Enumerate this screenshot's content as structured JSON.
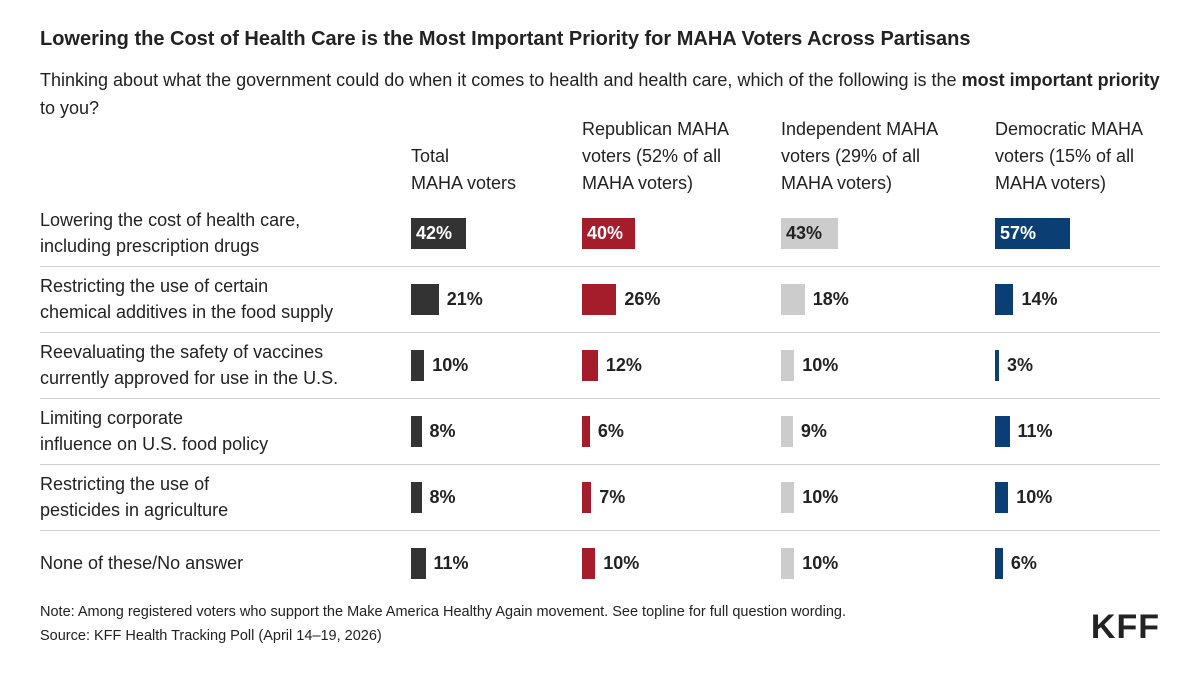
{
  "chart_data": {
    "type": "bar",
    "title": "Lowering the Cost of Health Care is the Most Important Priority for MAHA Voters Across Partisans",
    "subtitle": [
      "Thinking about what the government could do when it comes to health and health care, which of the following is the",
      "most important priority",
      "to you?"
    ],
    "categories": [
      "Lowering the cost of health care,\nincluding prescription drugs",
      "Restricting the use of certain\nchemical additives in the food supply",
      "Reevaluating the safety of vaccines\ncurrently approved for use in the U.S.",
      "Limiting corporate\ninfluence on U.S. food policy",
      "Restricting the use of\npesticides in agriculture",
      "None of these/No answer"
    ],
    "series": [
      {
        "name": "Total\nMAHA voters",
        "color": "#333333",
        "values": [
          42,
          21,
          10,
          8,
          8,
          11
        ],
        "value_labels": [
          "42%",
          "21%",
          "10%",
          "8%",
          "8%",
          "11%"
        ]
      },
      {
        "name": "Republican MAHA\nvoters (52% of all\nMAHA voters)",
        "color": "#a51c2a",
        "values": [
          40,
          26,
          12,
          6,
          7,
          10
        ],
        "value_labels": [
          "40%",
          "26%",
          "12%",
          "6%",
          "7%",
          "10%"
        ]
      },
      {
        "name": "Independent MAHA\nvoters (29% of all\nMAHA voters)",
        "color": "#cccccc",
        "values": [
          43,
          18,
          10,
          9,
          10,
          10
        ],
        "value_labels": [
          "43%",
          "18%",
          "10%",
          "9%",
          "10%",
          "10%"
        ]
      },
      {
        "name": "Democratic MAHA\nvoters (15% of all\nMAHA voters)",
        "color": "#0b3f73",
        "values": [
          57,
          14,
          3,
          11,
          10,
          6
        ],
        "value_labels": [
          "57%",
          "14%",
          "3%",
          "11%",
          "10%",
          "6%"
        ]
      }
    ],
    "notes": [
      "Note: Among registered voters who support the Make America Healthy Again movement. See topline for full question wording.",
      "Source: KFF Health Tracking Poll (April 14–19, 2026)"
    ],
    "logo": "KFF"
  }
}
